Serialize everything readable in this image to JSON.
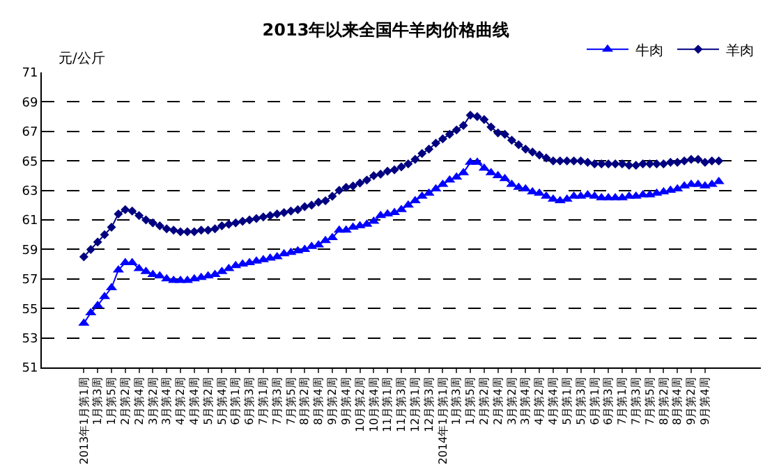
{
  "chart_data": {
    "type": "line",
    "title": "2013年以来全国牛羊肉价格曲线",
    "ylabel": "元/公斤",
    "categories": [
      "2013年1月第1周",
      null,
      "1月第3周",
      null,
      "1月第5周",
      null,
      "2月第2周",
      null,
      "2月第4周",
      null,
      "3月第2周",
      null,
      "3月第4周",
      null,
      "4月第2周",
      null,
      "4月第4周",
      null,
      "5月第2周",
      null,
      "5月第4周",
      null,
      "6月第1周",
      null,
      "6月第3周",
      null,
      "7月第1周",
      null,
      "7月第3周",
      null,
      "7月第5周",
      null,
      "8月第2周",
      null,
      "8月第4周",
      null,
      "9月第2周",
      null,
      "9月第4周",
      null,
      "10月第2周",
      null,
      "10月第4周",
      null,
      "11月第1周",
      null,
      "11月第3周",
      null,
      "12月第1周",
      null,
      "12月第3周",
      null,
      "2014年1月第1周",
      null,
      "1月第3周",
      null,
      "1月第5周",
      null,
      "2月第2周",
      null,
      "2月第4周",
      null,
      "3月第2周",
      null,
      "3月第4周",
      null,
      "4月第2周",
      null,
      "4月第4周",
      null,
      "5月第1周",
      null,
      "5月第3周",
      null,
      "6月第1周",
      null,
      "6月第3周",
      null,
      "7月第1周",
      null,
      "7月第3周",
      null,
      "7月第5周",
      null,
      "8月第2周",
      null,
      "8月第4周",
      null,
      "9月第2周",
      null,
      "9月第4周",
      null,
      null
    ],
    "series": [
      {
        "name": "牛肉",
        "color": "#0000ff",
        "marker": "triangle",
        "values": [
          54.0,
          54.7,
          55.2,
          55.8,
          56.4,
          57.6,
          58.1,
          58.1,
          57.7,
          57.5,
          57.3,
          57.2,
          57.0,
          56.9,
          56.9,
          56.9,
          57.0,
          57.1,
          57.2,
          57.3,
          57.5,
          57.7,
          57.9,
          58.0,
          58.1,
          58.2,
          58.3,
          58.4,
          58.5,
          58.7,
          58.8,
          58.9,
          59.0,
          59.2,
          59.3,
          59.6,
          59.8,
          60.3,
          60.3,
          60.5,
          60.6,
          60.7,
          60.9,
          61.3,
          61.4,
          61.5,
          61.7,
          62.0,
          62.3,
          62.6,
          62.8,
          63.1,
          63.4,
          63.7,
          63.9,
          64.2,
          64.9,
          64.9,
          64.5,
          64.2,
          64.0,
          63.8,
          63.4,
          63.2,
          63.1,
          62.9,
          62.8,
          62.6,
          62.4,
          62.3,
          62.4,
          62.6,
          62.6,
          62.7,
          62.6,
          62.5,
          62.5,
          62.5,
          62.5,
          62.6,
          62.6,
          62.7,
          62.7,
          62.8,
          62.9,
          63.0,
          63.1,
          63.3,
          63.4,
          63.4,
          63.3,
          63.4,
          63.6
        ]
      },
      {
        "name": "羊肉",
        "color": "#000080",
        "marker": "diamond",
        "values": [
          58.5,
          59.0,
          59.5,
          60.0,
          60.5,
          61.4,
          61.7,
          61.6,
          61.3,
          61.0,
          60.8,
          60.6,
          60.4,
          60.3,
          60.2,
          60.2,
          60.2,
          60.3,
          60.3,
          60.4,
          60.6,
          60.7,
          60.8,
          60.9,
          61.0,
          61.1,
          61.2,
          61.3,
          61.4,
          61.5,
          61.6,
          61.7,
          61.9,
          62.0,
          62.2,
          62.3,
          62.6,
          63.0,
          63.2,
          63.3,
          63.5,
          63.7,
          64.0,
          64.1,
          64.3,
          64.4,
          64.6,
          64.8,
          65.1,
          65.5,
          65.8,
          66.2,
          66.5,
          66.8,
          67.1,
          67.4,
          68.1,
          68.0,
          67.8,
          67.3,
          66.9,
          66.8,
          66.4,
          66.1,
          65.8,
          65.6,
          65.4,
          65.2,
          65.0,
          65.0,
          65.0,
          65.0,
          65.0,
          64.9,
          64.8,
          64.8,
          64.8,
          64.8,
          64.8,
          64.7,
          64.7,
          64.8,
          64.8,
          64.8,
          64.8,
          64.9,
          64.9,
          65.0,
          65.1,
          65.1,
          64.9,
          65.0,
          65.0
        ]
      }
    ],
    "ylim": [
      51,
      71
    ],
    "yticks": [
      51,
      53,
      55,
      57,
      59,
      61,
      63,
      65,
      67,
      69,
      71
    ],
    "grid": "y",
    "legend": "top right",
    "line_style": "solid"
  }
}
